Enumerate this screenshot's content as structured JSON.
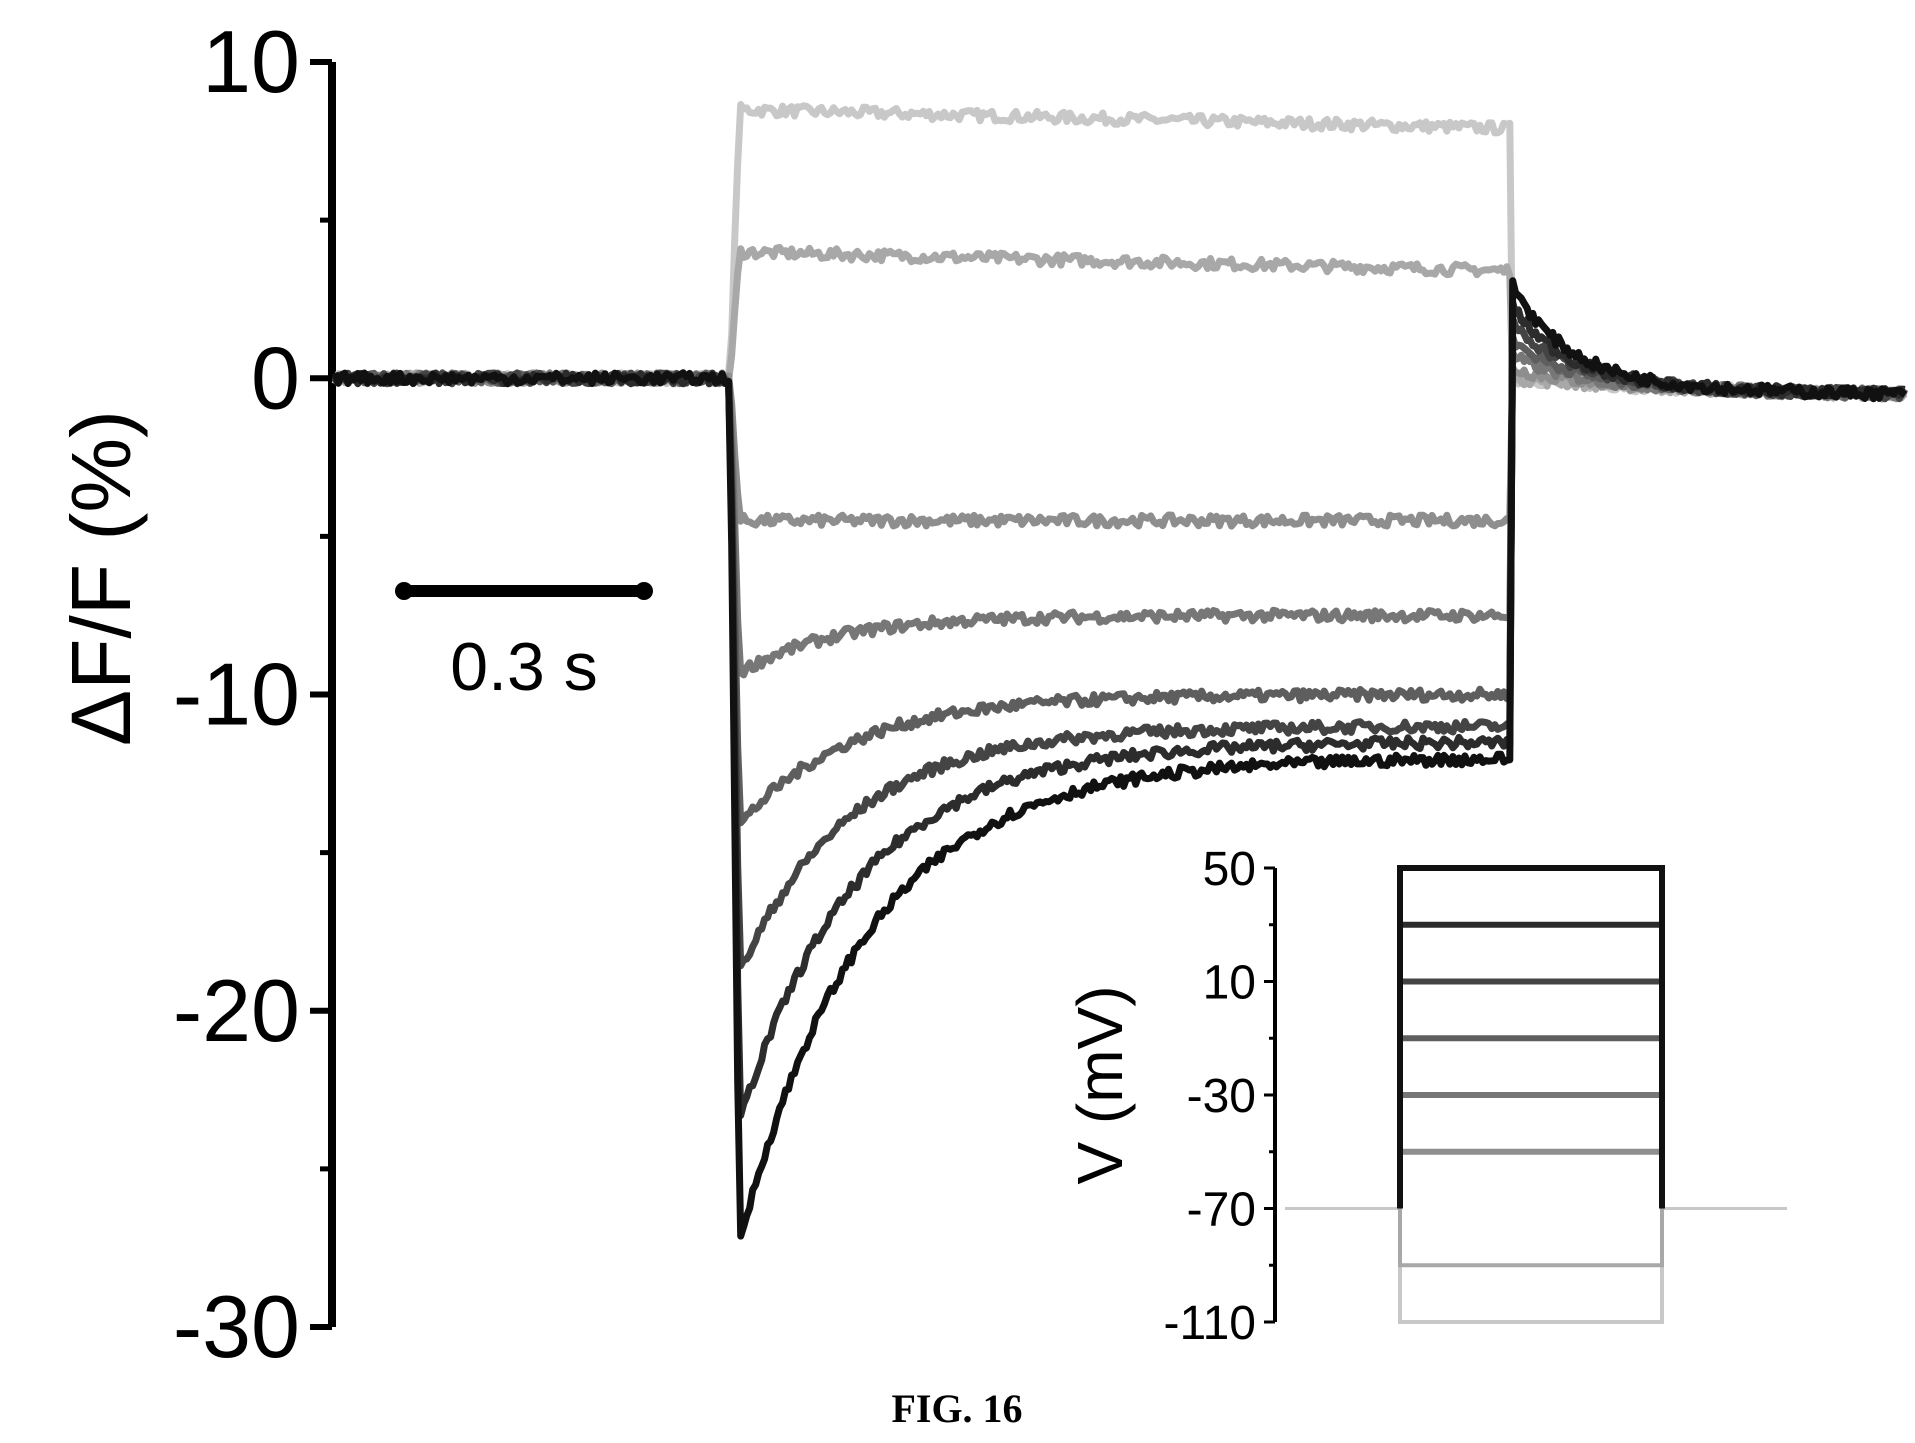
{
  "caption": "FIG. 16",
  "chart_data": [
    {
      "type": "line",
      "ylabel": "ΔF/F (%)",
      "ylim": [
        -30,
        10
      ],
      "yticks": [
        10,
        0,
        -10,
        -20,
        -30
      ],
      "ytick_labels": [
        "10",
        "0",
        "-10",
        "-20",
        "-30"
      ],
      "scalebar": {
        "label": "0.3 s",
        "duration_s": 0.3
      },
      "time_s": {
        "start": 0,
        "step_on": 0.46,
        "step_off": 1.45,
        "end": 1.97
      },
      "series": [
        {
          "baseline": 0,
          "plateau": 8.5,
          "peak": 8.5,
          "tau": 0.01,
          "rebound": 0.0,
          "color": "#c8c8c8"
        },
        {
          "baseline": 0,
          "plateau": 4.0,
          "peak": 4.0,
          "tau": 0.01,
          "rebound": 0.0,
          "color": "#a8a8a8"
        },
        {
          "baseline": 0,
          "plateau": -4.5,
          "peak": -4.5,
          "tau": 0.01,
          "rebound": 0.3,
          "color": "#8e8e8e"
        },
        {
          "baseline": 0,
          "plateau": -7.5,
          "peak": -9.5,
          "tau": 0.12,
          "rebound": 0.7,
          "color": "#777777"
        },
        {
          "baseline": 0,
          "plateau": -10.0,
          "peak": -14.5,
          "tau": 0.14,
          "rebound": 1.2,
          "color": "#5e5e5e"
        },
        {
          "baseline": 0,
          "plateau": -11.0,
          "peak": -19.5,
          "tau": 0.14,
          "rebound": 1.8,
          "color": "#444444"
        },
        {
          "baseline": 0,
          "plateau": -11.5,
          "peak": -24.5,
          "tau": 0.15,
          "rebound": 2.3,
          "color": "#2c2c2c"
        },
        {
          "baseline": 0,
          "plateau": -12.0,
          "peak": -28.5,
          "tau": 0.16,
          "rebound": 3.0,
          "color": "#111111"
        }
      ]
    },
    {
      "type": "line",
      "ylabel": "V (mV)",
      "ylim": [
        -110,
        50
      ],
      "yticks": [
        50,
        10,
        -30,
        -70,
        -110
      ],
      "ytick_labels": [
        "50",
        "10",
        "-30",
        "-70",
        "-110"
      ],
      "holding_mv": -70,
      "steps_mv": [
        50,
        30,
        10,
        -10,
        -30,
        -50,
        -90,
        -110
      ],
      "step_colors": [
        "#111111",
        "#2c2c2c",
        "#444444",
        "#5e5e5e",
        "#777777",
        "#8e8e8e",
        "#a8a8a8",
        "#c8c8c8"
      ]
    }
  ]
}
